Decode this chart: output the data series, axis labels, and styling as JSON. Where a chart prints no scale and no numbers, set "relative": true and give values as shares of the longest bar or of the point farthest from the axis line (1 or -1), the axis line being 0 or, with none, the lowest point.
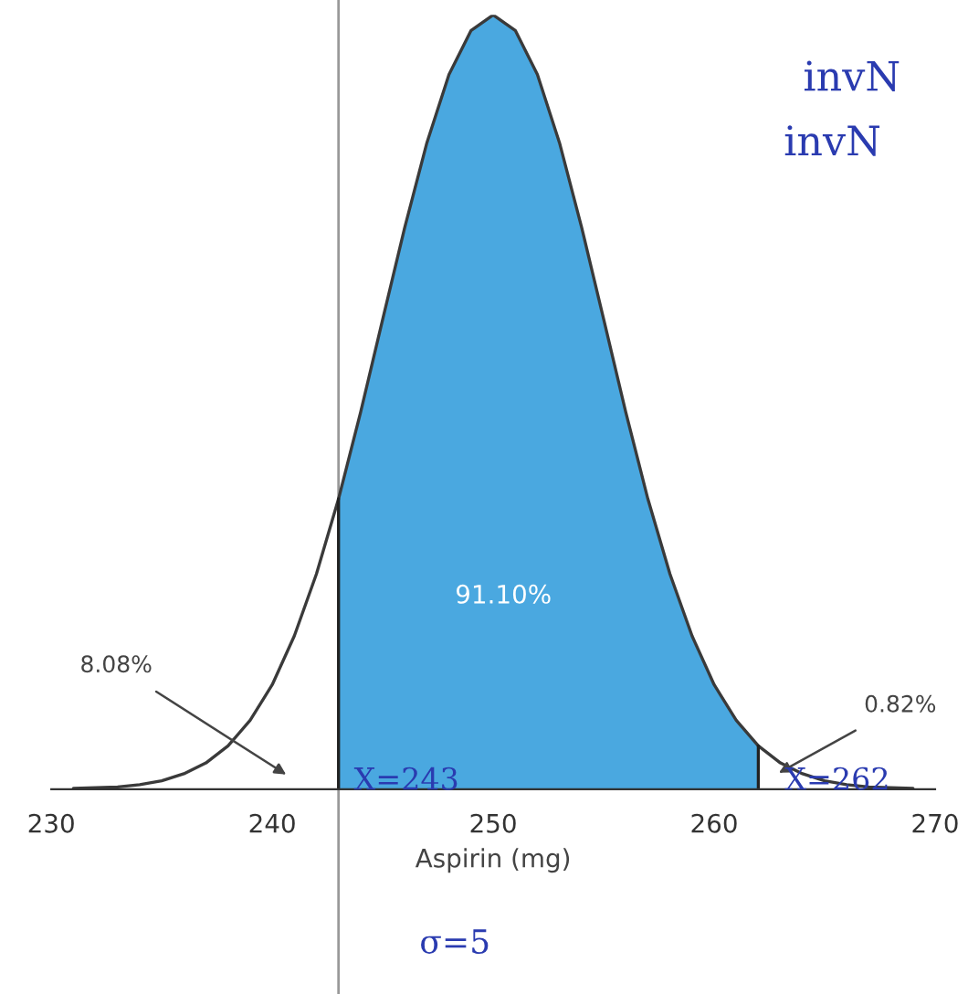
{
  "chart_data": {
    "type": "area",
    "relative": true,
    "xlabel": "Aspirin (mg)",
    "xlim": [
      230,
      270
    ],
    "xticks": [
      230,
      240,
      250,
      260,
      270
    ],
    "tick_labels": "x",
    "series": [
      {
        "type": "line",
        "color": "#3a3a3a",
        "x": [
          231,
          232,
          233,
          234,
          235,
          236,
          237,
          238,
          239,
          240,
          241,
          242,
          243,
          244,
          245,
          246,
          247,
          248,
          249,
          250,
          251,
          252,
          253,
          254,
          255,
          256,
          257,
          258,
          259,
          260,
          261,
          262,
          263,
          264,
          265,
          266,
          267,
          268,
          269
        ],
        "values": [
          0.001,
          0.002,
          0.003,
          0.006,
          0.011,
          0.02,
          0.034,
          0.056,
          0.089,
          0.135,
          0.198,
          0.278,
          0.375,
          0.487,
          0.607,
          0.726,
          0.835,
          0.923,
          0.98,
          1,
          0.98,
          0.923,
          0.835,
          0.726,
          0.607,
          0.487,
          0.375,
          0.278,
          0.198,
          0.135,
          0.089,
          0.056,
          0.034,
          0.02,
          0.011,
          0.006,
          0.003,
          0.002,
          0.001
        ]
      },
      {
        "color": "#4aa8e0",
        "x": [
          243,
          244,
          245,
          246,
          247,
          248,
          249,
          250,
          251,
          252,
          253,
          254,
          255,
          256,
          257,
          258,
          259,
          260,
          261,
          262
        ],
        "values": [
          0.375,
          0.487,
          0.607,
          0.726,
          0.835,
          0.923,
          0.98,
          1,
          0.98,
          0.923,
          0.835,
          0.726,
          0.607,
          0.487,
          0.375,
          0.278,
          0.198,
          0.135,
          0.089,
          0.056
        ]
      }
    ],
    "ref_lines": [
      {
        "axis": "x",
        "value": 243,
        "color": "#999999"
      }
    ],
    "annotations": [
      "91.10%",
      "8.08%",
      "0.82%",
      "X=243",
      "X=262",
      "σ=5",
      "invN",
      "invN"
    ]
  }
}
